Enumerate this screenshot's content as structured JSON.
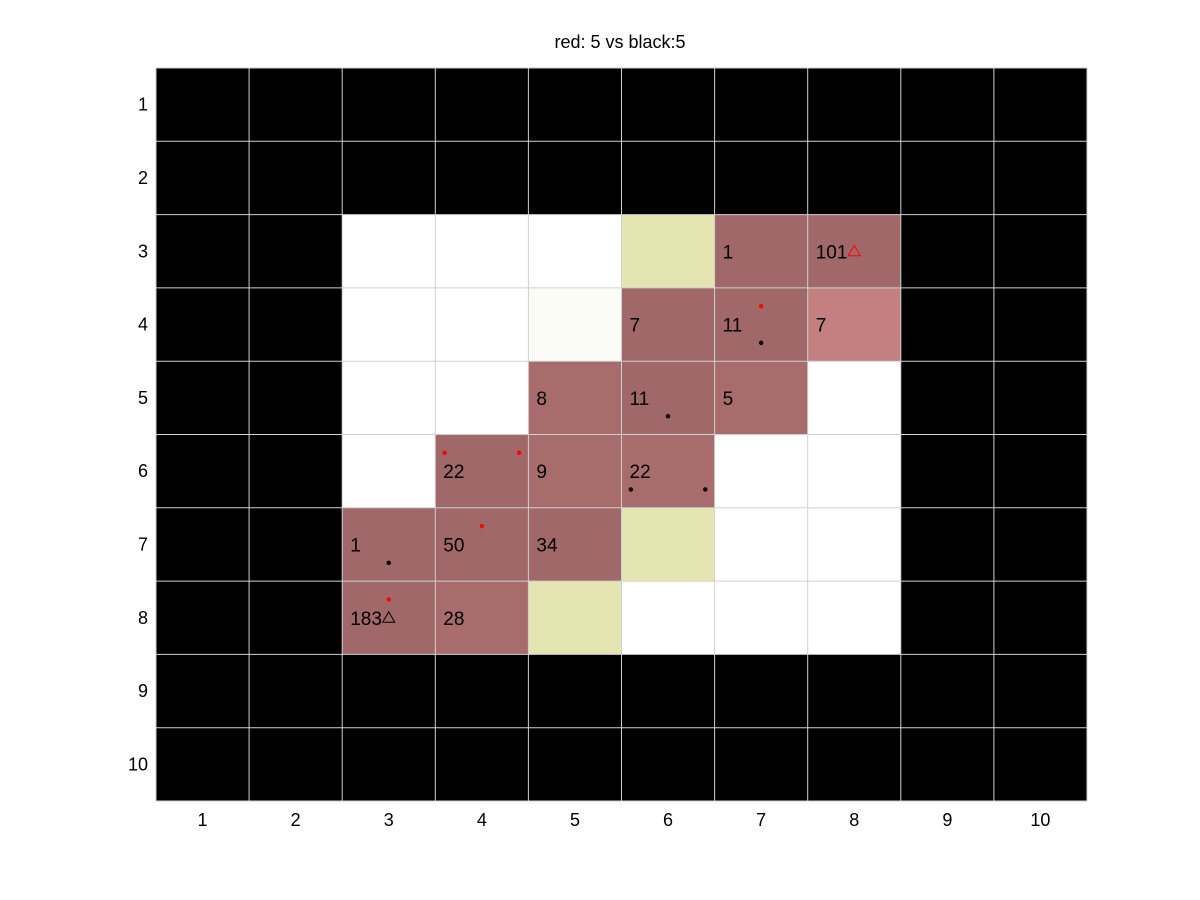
{
  "title": "red: 5 vs black:5",
  "board": {
    "rows": 10,
    "cols": 10,
    "x_ticks": [
      "1",
      "2",
      "3",
      "4",
      "5",
      "6",
      "7",
      "8",
      "9",
      "10"
    ],
    "y_ticks": [
      "1",
      "2",
      "3",
      "4",
      "5",
      "6",
      "7",
      "8",
      "9",
      "10"
    ],
    "palette": {
      "wall": "#000000",
      "empty": "#ffffff",
      "faint": "#fcfcf7",
      "yellow": "#e5e5b2",
      "dark": "#a06868",
      "mid": "#a86c6c",
      "light": "#c48080",
      "grid": "#d0d0d0",
      "red": "#ff0000",
      "black": "#000000"
    },
    "cells": [
      {
        "row": 3,
        "col": 3,
        "type": "empty"
      },
      {
        "row": 3,
        "col": 4,
        "type": "empty"
      },
      {
        "row": 3,
        "col": 5,
        "type": "empty"
      },
      {
        "row": 3,
        "col": 6,
        "type": "yellow"
      },
      {
        "row": 3,
        "col": 7,
        "type": "dark",
        "label": "1"
      },
      {
        "row": 3,
        "col": 8,
        "type": "dark",
        "label": "101"
      },
      {
        "row": 4,
        "col": 3,
        "type": "empty"
      },
      {
        "row": 4,
        "col": 4,
        "type": "empty"
      },
      {
        "row": 4,
        "col": 5,
        "type": "faint"
      },
      {
        "row": 4,
        "col": 6,
        "type": "dark",
        "label": "7"
      },
      {
        "row": 4,
        "col": 7,
        "type": "dark",
        "label": "11"
      },
      {
        "row": 4,
        "col": 8,
        "type": "light",
        "label": "7"
      },
      {
        "row": 5,
        "col": 3,
        "type": "empty"
      },
      {
        "row": 5,
        "col": 4,
        "type": "empty"
      },
      {
        "row": 5,
        "col": 5,
        "type": "mid",
        "label": "8"
      },
      {
        "row": 5,
        "col": 6,
        "type": "dark",
        "label": "11"
      },
      {
        "row": 5,
        "col": 7,
        "type": "mid",
        "label": "5"
      },
      {
        "row": 5,
        "col": 8,
        "type": "empty"
      },
      {
        "row": 6,
        "col": 3,
        "type": "empty"
      },
      {
        "row": 6,
        "col": 4,
        "type": "dark",
        "label": "22"
      },
      {
        "row": 6,
        "col": 5,
        "type": "mid",
        "label": "9"
      },
      {
        "row": 6,
        "col": 6,
        "type": "mid",
        "label": "22"
      },
      {
        "row": 6,
        "col": 7,
        "type": "empty"
      },
      {
        "row": 6,
        "col": 8,
        "type": "empty"
      },
      {
        "row": 7,
        "col": 3,
        "type": "dark",
        "label": "1"
      },
      {
        "row": 7,
        "col": 4,
        "type": "dark",
        "label": "50"
      },
      {
        "row": 7,
        "col": 5,
        "type": "dark",
        "label": "34"
      },
      {
        "row": 7,
        "col": 6,
        "type": "yellow"
      },
      {
        "row": 7,
        "col": 7,
        "type": "empty"
      },
      {
        "row": 7,
        "col": 8,
        "type": "empty"
      },
      {
        "row": 8,
        "col": 3,
        "type": "dark",
        "label": "183"
      },
      {
        "row": 8,
        "col": 4,
        "type": "mid",
        "label": "28"
      },
      {
        "row": 8,
        "col": 5,
        "type": "yellow"
      },
      {
        "row": 8,
        "col": 6,
        "type": "empty"
      },
      {
        "row": 8,
        "col": 7,
        "type": "empty"
      },
      {
        "row": 8,
        "col": 8,
        "type": "empty"
      }
    ],
    "dots": [
      {
        "x": 7,
        "y": 3.75,
        "color": "red"
      },
      {
        "x": 7,
        "y": 4.25,
        "color": "black"
      },
      {
        "x": 6,
        "y": 5.25,
        "color": "black"
      },
      {
        "x": 3.6,
        "y": 5.75,
        "color": "red"
      },
      {
        "x": 4.4,
        "y": 5.75,
        "color": "red"
      },
      {
        "x": 5.6,
        "y": 6.25,
        "color": "black"
      },
      {
        "x": 6.4,
        "y": 6.25,
        "color": "black"
      },
      {
        "x": 4,
        "y": 6.75,
        "color": "red"
      },
      {
        "x": 3,
        "y": 7.25,
        "color": "black"
      },
      {
        "x": 3,
        "y": 7.75,
        "color": "red"
      }
    ],
    "triangles": [
      {
        "x": 8,
        "y": 3,
        "color": "red"
      },
      {
        "x": 3,
        "y": 8,
        "color": "black"
      }
    ]
  }
}
